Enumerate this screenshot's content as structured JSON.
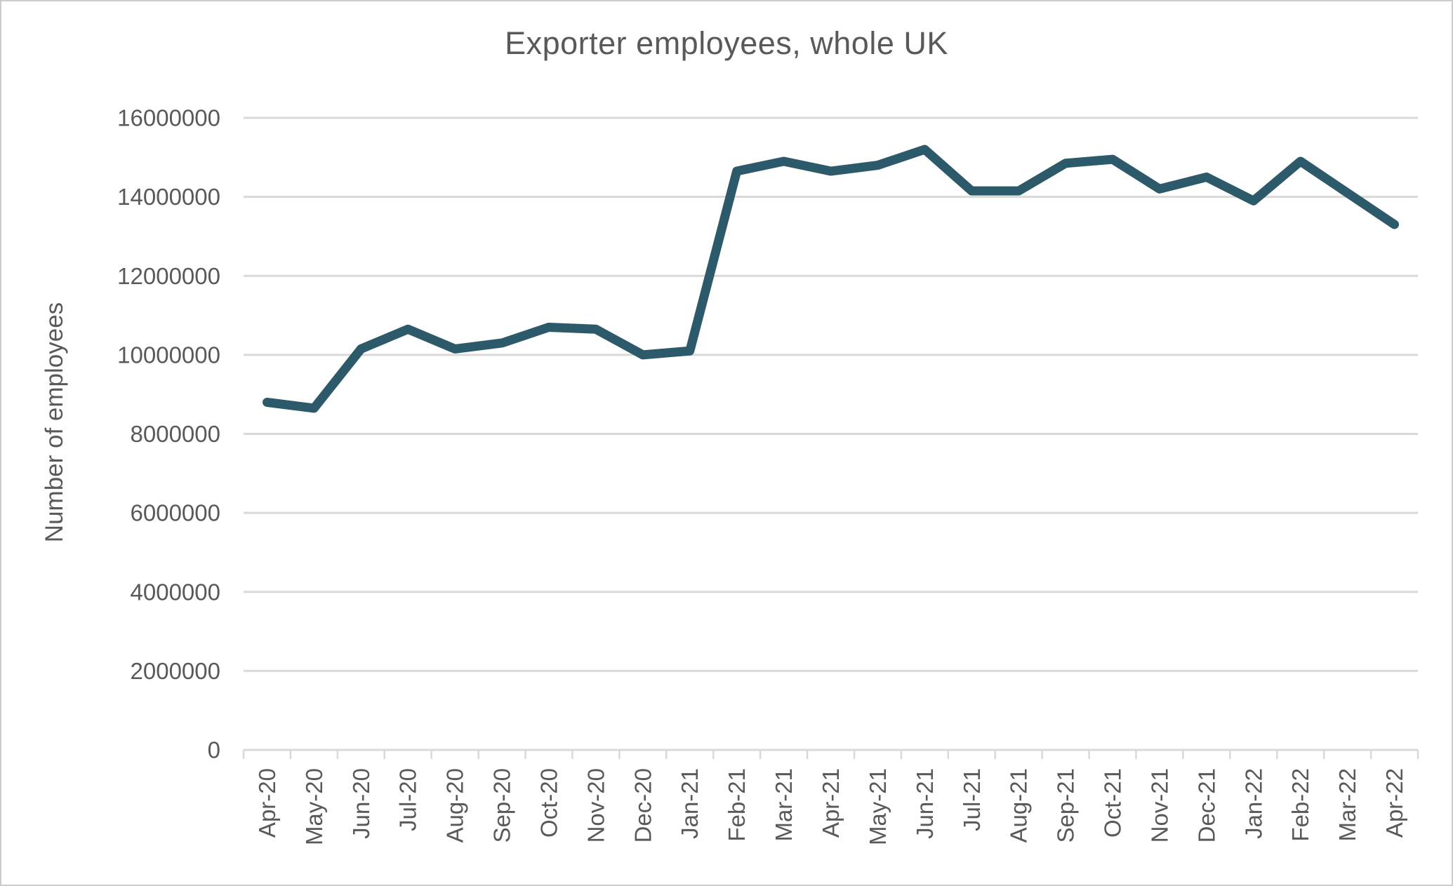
{
  "chart_data": {
    "type": "line",
    "title": "Exporter employees, whole UK",
    "ylabel": "Number of employees",
    "xlabel": "",
    "categories": [
      "Apr-20",
      "May-20",
      "Jun-20",
      "Jul-20",
      "Aug-20",
      "Sep-20",
      "Oct-20",
      "Nov-20",
      "Dec-20",
      "Jan-21",
      "Feb-21",
      "Mar-21",
      "Apr-21",
      "May-21",
      "Jun-21",
      "Jul-21",
      "Aug-21",
      "Sep-21",
      "Oct-21",
      "Nov-21",
      "Dec-21",
      "Jan-22",
      "Feb-22",
      "Mar-22",
      "Apr-22"
    ],
    "values": [
      8800000,
      8650000,
      10150000,
      10650000,
      10150000,
      10300000,
      10700000,
      10650000,
      10000000,
      10100000,
      14650000,
      14900000,
      14650000,
      14800000,
      15200000,
      14150000,
      14150000,
      14850000,
      14950000,
      14200000,
      14500000,
      13900000,
      14900000,
      14100000,
      13300000
    ],
    "ylim": [
      0,
      16000000
    ],
    "y_ticks": [
      0,
      2000000,
      4000000,
      6000000,
      8000000,
      10000000,
      12000000,
      14000000,
      16000000
    ],
    "grid": "horizontal-only",
    "legend": "none",
    "line_color": "#2D5A6A",
    "text_color": "#595959",
    "grid_color": "#D9D9D9"
  }
}
